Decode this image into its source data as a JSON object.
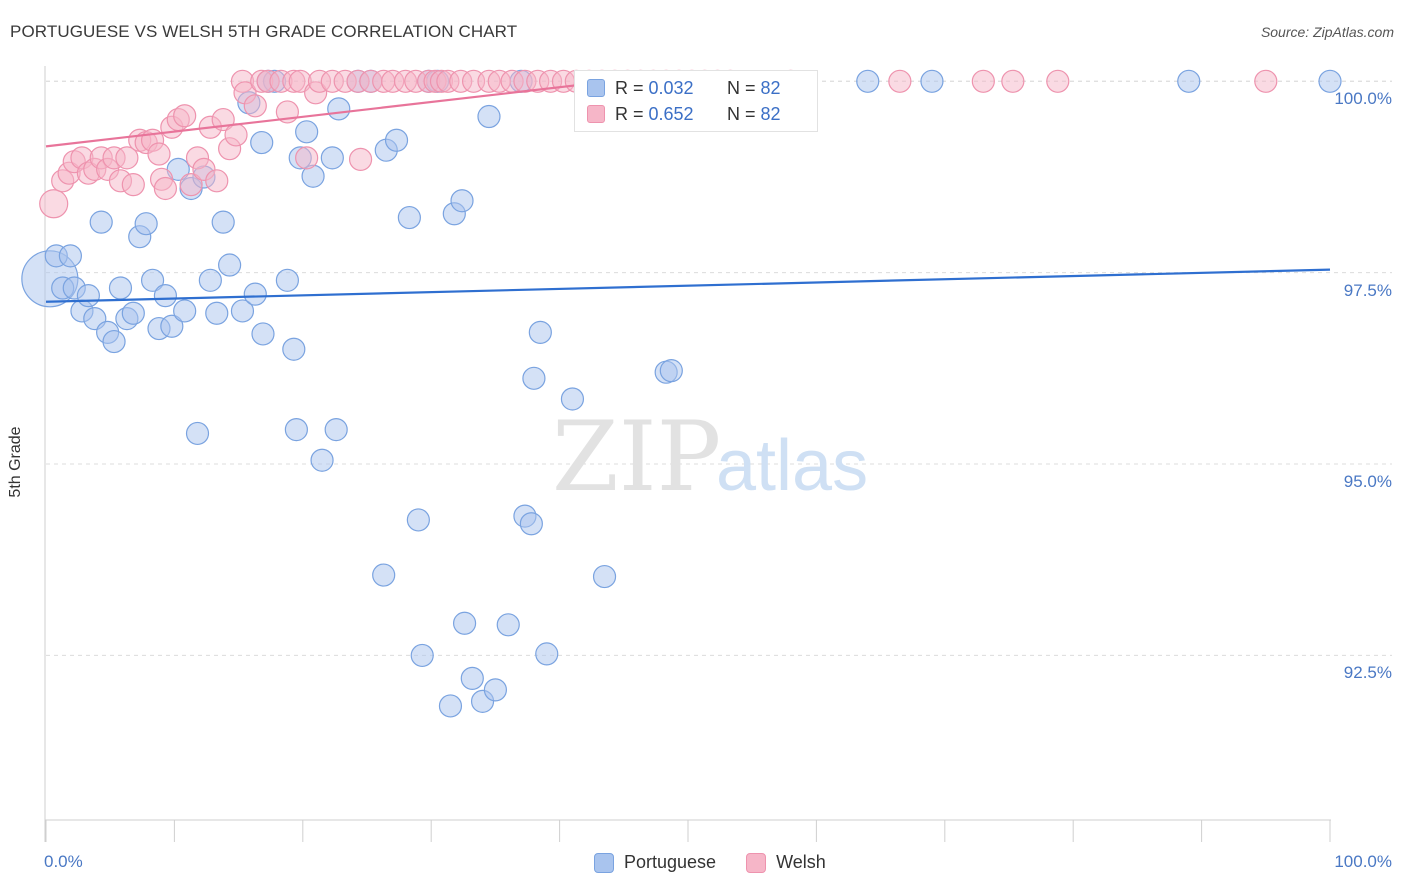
{
  "title": "PORTUGUESE VS WELSH 5TH GRADE CORRELATION CHART",
  "source": "Source: ZipAtlas.com",
  "watermark": {
    "part1": "ZIP",
    "part2": "atlas"
  },
  "stats": [
    {
      "r_label": "R = ",
      "r_value": "0.032",
      "n_label": "N = ",
      "n_value": "82",
      "color": "#a9c4ee",
      "border": "#7aa3e0"
    },
    {
      "r_label": "R = ",
      "r_value": "0.652",
      "n_label": "N = ",
      "n_value": "82",
      "color": "#f6b6c8",
      "border": "#ee93ae"
    }
  ],
  "legend": [
    {
      "label": "Portuguese",
      "color": "#a9c4ee",
      "border": "#7aa3e0"
    },
    {
      "label": "Welsh",
      "color": "#f6b6c8",
      "border": "#ee93ae"
    }
  ],
  "chart_data": {
    "type": "scatter",
    "title": "PORTUGUESE VS WELSH 5TH GRADE CORRELATION CHART",
    "xlabel": "",
    "ylabel": "5th Grade",
    "xlim": [
      0,
      100
    ],
    "ylim": [
      90.35,
      100.2
    ],
    "x_tick_labels": [
      "0.0%",
      "100.0%"
    ],
    "y_ticks": [
      {
        "value": 92.5,
        "label": "92.5%"
      },
      {
        "value": 95.0,
        "label": "95.0%"
      },
      {
        "value": 97.5,
        "label": "97.5%"
      },
      {
        "value": 100.0,
        "label": "100.0%"
      }
    ],
    "grid": true,
    "legend_position": "bottom-center",
    "series": [
      {
        "name": "Portuguese",
        "color": "#a9c4ee",
        "edge": "#7aa3e0",
        "line_color": "#2f6fd0",
        "trend": [
          [
            0,
            97.12
          ],
          [
            100,
            97.54
          ]
        ],
        "points": [
          [
            0.3,
            97.42,
            28
          ],
          [
            0.8,
            97.72,
            11
          ],
          [
            1.3,
            97.3,
            11
          ],
          [
            1.9,
            97.72,
            11
          ],
          [
            2.2,
            97.3,
            11
          ],
          [
            2.8,
            97.0,
            11
          ],
          [
            3.3,
            97.2,
            11
          ],
          [
            3.8,
            96.9,
            11
          ],
          [
            4.3,
            98.16,
            11
          ],
          [
            4.8,
            96.72,
            11
          ],
          [
            5.3,
            96.6,
            11
          ],
          [
            5.8,
            97.3,
            11
          ],
          [
            6.3,
            96.9,
            11
          ],
          [
            6.8,
            96.97,
            11
          ],
          [
            7.3,
            97.97,
            11
          ],
          [
            7.8,
            98.14,
            11
          ],
          [
            8.3,
            97.4,
            11
          ],
          [
            8.8,
            96.77,
            11
          ],
          [
            9.3,
            97.2,
            11
          ],
          [
            9.8,
            96.8,
            11
          ],
          [
            10.3,
            98.85,
            11
          ],
          [
            10.8,
            97.0,
            11
          ],
          [
            11.3,
            98.6,
            11
          ],
          [
            11.8,
            95.4,
            11
          ],
          [
            12.3,
            98.75,
            11
          ],
          [
            12.8,
            97.4,
            11
          ],
          [
            13.3,
            96.97,
            11
          ],
          [
            13.8,
            98.16,
            11
          ],
          [
            14.3,
            97.6,
            11
          ],
          [
            15.3,
            97.0,
            11
          ],
          [
            15.8,
            99.72,
            11
          ],
          [
            16.3,
            97.22,
            11
          ],
          [
            16.8,
            99.2,
            11
          ],
          [
            16.9,
            96.7,
            11
          ],
          [
            17.3,
            100.0,
            11
          ],
          [
            17.8,
            100.0,
            11
          ],
          [
            18.8,
            97.4,
            11
          ],
          [
            19.3,
            96.5,
            11
          ],
          [
            19.5,
            95.45,
            11
          ],
          [
            19.8,
            99.0,
            11
          ],
          [
            20.3,
            99.34,
            11
          ],
          [
            20.8,
            98.76,
            11
          ],
          [
            21.5,
            95.05,
            11
          ],
          [
            22.3,
            99.0,
            11
          ],
          [
            22.6,
            95.45,
            11
          ],
          [
            22.8,
            99.64,
            11
          ],
          [
            24.3,
            100.0,
            11
          ],
          [
            25.3,
            100.0,
            11
          ],
          [
            26.3,
            93.55,
            11
          ],
          [
            26.5,
            99.1,
            11
          ],
          [
            27.3,
            99.23,
            11
          ],
          [
            28.3,
            98.22,
            11
          ],
          [
            29.0,
            94.27,
            11
          ],
          [
            29.3,
            92.5,
            11
          ],
          [
            29.8,
            100.0,
            11
          ],
          [
            30.5,
            100.0,
            11
          ],
          [
            31.5,
            91.84,
            11
          ],
          [
            31.8,
            98.27,
            11
          ],
          [
            32.4,
            98.44,
            11
          ],
          [
            32.6,
            92.92,
            11
          ],
          [
            33.2,
            92.2,
            11
          ],
          [
            34.0,
            91.9,
            11
          ],
          [
            34.5,
            99.54,
            11
          ],
          [
            35.0,
            92.05,
            11
          ],
          [
            36.0,
            92.9,
            11
          ],
          [
            37.0,
            100.0,
            11
          ],
          [
            37.3,
            94.32,
            11
          ],
          [
            37.8,
            94.22,
            11
          ],
          [
            38.0,
            96.12,
            11
          ],
          [
            38.5,
            96.72,
            11
          ],
          [
            39.0,
            92.52,
            11
          ],
          [
            41.0,
            95.85,
            11
          ],
          [
            43.5,
            93.53,
            11
          ],
          [
            48.3,
            96.2,
            11
          ],
          [
            48.7,
            96.22,
            11
          ],
          [
            64.0,
            100.0,
            11
          ],
          [
            69.0,
            100.0,
            11
          ],
          [
            89.0,
            100.0,
            11
          ],
          [
            100.0,
            100.0,
            11
          ]
        ]
      },
      {
        "name": "Welsh",
        "color": "#f6b6c8",
        "edge": "#ee93ae",
        "line_color": "#e8749a",
        "trend": [
          [
            0,
            99.15
          ],
          [
            44,
            100.0
          ]
        ],
        "points": [
          [
            0.6,
            98.4,
            14
          ],
          [
            1.3,
            98.7,
            11
          ],
          [
            1.8,
            98.8,
            11
          ],
          [
            2.2,
            98.95,
            11
          ],
          [
            2.8,
            99.0,
            11
          ],
          [
            3.3,
            98.8,
            11
          ],
          [
            3.8,
            98.85,
            11
          ],
          [
            4.3,
            99.0,
            11
          ],
          [
            4.8,
            98.85,
            11
          ],
          [
            5.3,
            99.0,
            11
          ],
          [
            5.8,
            98.7,
            11
          ],
          [
            6.3,
            99.0,
            11
          ],
          [
            6.8,
            98.65,
            11
          ],
          [
            7.3,
            99.23,
            11
          ],
          [
            7.8,
            99.2,
            11
          ],
          [
            8.3,
            99.23,
            11
          ],
          [
            8.8,
            99.05,
            11
          ],
          [
            9.0,
            98.72,
            11
          ],
          [
            9.3,
            98.6,
            11
          ],
          [
            9.8,
            99.4,
            11
          ],
          [
            10.3,
            99.5,
            11
          ],
          [
            10.8,
            99.55,
            11
          ],
          [
            11.3,
            98.65,
            11
          ],
          [
            11.8,
            99.0,
            11
          ],
          [
            12.3,
            98.85,
            11
          ],
          [
            12.8,
            99.4,
            11
          ],
          [
            13.3,
            98.7,
            11
          ],
          [
            13.8,
            99.5,
            11
          ],
          [
            14.3,
            99.12,
            11
          ],
          [
            14.8,
            99.3,
            11
          ],
          [
            15.3,
            100.0,
            11
          ],
          [
            15.5,
            99.85,
            11
          ],
          [
            16.3,
            99.68,
            11
          ],
          [
            16.8,
            100.0,
            11
          ],
          [
            17.3,
            100.0,
            11
          ],
          [
            18.3,
            100.0,
            11
          ],
          [
            18.8,
            99.6,
            11
          ],
          [
            19.3,
            100.0,
            11
          ],
          [
            19.8,
            100.0,
            11
          ],
          [
            20.3,
            99.0,
            11
          ],
          [
            21.0,
            99.85,
            11
          ],
          [
            21.3,
            100.0,
            11
          ],
          [
            22.3,
            100.0,
            11
          ],
          [
            23.3,
            100.0,
            11
          ],
          [
            24.3,
            100.0,
            11
          ],
          [
            24.5,
            98.98,
            11
          ],
          [
            25.3,
            100.0,
            11
          ],
          [
            26.3,
            100.0,
            11
          ],
          [
            27.0,
            100.0,
            11
          ],
          [
            28.0,
            100.0,
            11
          ],
          [
            28.8,
            100.0,
            11
          ],
          [
            29.8,
            100.0,
            11
          ],
          [
            30.3,
            100.0,
            11
          ],
          [
            30.8,
            100.0,
            11
          ],
          [
            31.3,
            100.0,
            11
          ],
          [
            32.3,
            100.0,
            11
          ],
          [
            33.3,
            100.0,
            11
          ],
          [
            34.5,
            100.0,
            11
          ],
          [
            35.3,
            100.0,
            11
          ],
          [
            36.3,
            100.0,
            11
          ],
          [
            37.3,
            100.0,
            11
          ],
          [
            38.3,
            100.0,
            11
          ],
          [
            39.3,
            100.0,
            11
          ],
          [
            40.3,
            100.0,
            11
          ],
          [
            41.3,
            100.0,
            11
          ],
          [
            42.3,
            100.0,
            11
          ],
          [
            43.3,
            100.0,
            11
          ],
          [
            44.3,
            100.0,
            11
          ],
          [
            45.3,
            100.0,
            11
          ],
          [
            46.3,
            100.0,
            11
          ],
          [
            47.3,
            100.0,
            11
          ],
          [
            48.3,
            100.0,
            11
          ],
          [
            49.3,
            100.0,
            11
          ],
          [
            50.3,
            100.0,
            11
          ],
          [
            51.3,
            100.0,
            11
          ],
          [
            52.3,
            100.0,
            11
          ],
          [
            53.3,
            100.0,
            11
          ],
          [
            58.0,
            100.0,
            11
          ],
          [
            66.5,
            100.0,
            11
          ],
          [
            73.0,
            100.0,
            11
          ],
          [
            75.3,
            100.0,
            11
          ],
          [
            78.8,
            100.0,
            11
          ],
          [
            95.0,
            100.0,
            11
          ]
        ]
      }
    ]
  }
}
